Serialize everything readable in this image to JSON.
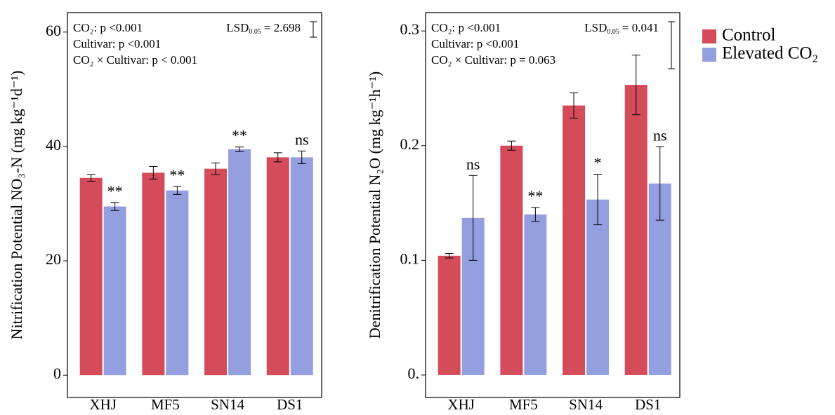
{
  "chart_data": [
    {
      "type": "bar",
      "y_label": "Nitrification Potential  NO₃-N (mg kg⁻¹d⁻¹)",
      "categories": [
        "XHJ",
        "MF5",
        "SN14",
        "DS1"
      ],
      "series": [
        {
          "name": "Control",
          "color": "#d44b5a",
          "values": [
            34.5,
            35.4,
            36.1,
            38.1
          ],
          "errors": [
            0.6,
            1.1,
            1.0,
            0.8
          ]
        },
        {
          "name": "Elevated CO₂",
          "color": "#949fe0",
          "values": [
            29.5,
            32.3,
            39.5,
            38.1
          ],
          "errors": [
            0.7,
            0.7,
            0.4,
            1.1
          ],
          "significance": [
            "**",
            "**",
            "**",
            "ns"
          ]
        }
      ],
      "ylim": [
        -3.9,
        63.4
      ],
      "yticks": [
        0,
        20,
        40,
        60
      ],
      "annotations": [
        "CO₂: p <0.001",
        "Cultivar: p <0.001",
        "CO₂ × Cultivar: p < 0.001"
      ],
      "lsd": {
        "label": "LSD",
        "subscript": "0.05",
        "value": 2.698,
        "value_label": "= 2.698"
      },
      "legend": "right"
    },
    {
      "type": "bar",
      "y_label": "Denitrification Potential  N₂O (mg kg⁻¹h⁻¹)",
      "categories": [
        "XHJ",
        "MF5",
        "SN14",
        "DS1"
      ],
      "series": [
        {
          "name": "Control",
          "color": "#d44b5a",
          "values": [
            0.104,
            0.2,
            0.235,
            0.253
          ],
          "errors": [
            0.002,
            0.004,
            0.011,
            0.026
          ]
        },
        {
          "name": "Elevated CO₂",
          "color": "#949fe0",
          "values": [
            0.137,
            0.14,
            0.153,
            0.167
          ],
          "errors": [
            0.037,
            0.006,
            0.022,
            0.032
          ],
          "significance": [
            "ns",
            "**",
            "*",
            "ns"
          ]
        }
      ],
      "ylim": [
        -0.0196,
        0.316
      ],
      "yticks": [
        {
          "value": 0,
          "label": "0."
        },
        0.1,
        0.2,
        0.3
      ],
      "annotations": [
        "CO₂: p <0.001",
        "Cultivar: p <0.001",
        "CO₂ × Cultivar: p = 0.063"
      ],
      "lsd": {
        "label": "LSD",
        "subscript": "0.05",
        "value": 0.041,
        "value_label": "= 0.041"
      }
    }
  ]
}
